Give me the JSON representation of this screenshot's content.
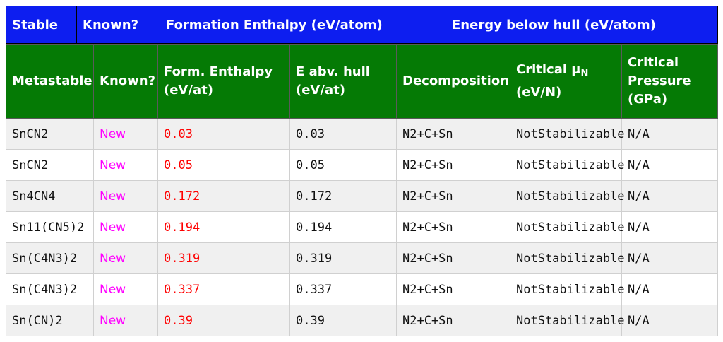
{
  "stable_header": {
    "stable": "Stable",
    "known": "Known?",
    "formation_enthalpy": "Formation Enthalpy (eV/atom)",
    "energy_below_hull": "Energy below hull (eV/atom)"
  },
  "meta_header": {
    "metastable": "Metastable",
    "known": "Known?",
    "form_enthalpy_line1": "Form. Enthalpy",
    "form_enthalpy_line2": "(eV/at)",
    "e_abv_hull_line1": "E abv. hull",
    "e_abv_hull_line2": "(eV/at)",
    "decomposition": "Decomposition",
    "critical_mu_line1": "Critical μ",
    "critical_mu_sub": "N",
    "critical_mu_line2": "(eV/N)",
    "critical_pressure_line1": "Critical",
    "critical_pressure_line2": "Pressure",
    "critical_pressure_line3": "(GPa)"
  },
  "colors": {
    "stable_header_bg": "#0d1ef0",
    "meta_header_bg": "#057a05",
    "known_text": "#ff00ff",
    "form_enthalpy_text": "#ff0000"
  },
  "rows": [
    {
      "formula": "SnCN2",
      "known": "New",
      "form_enthalpy": "0.03",
      "e_abv_hull": "0.03",
      "decomposition": "N2+C+Sn",
      "critical_mu": "NotStabilizable",
      "critical_pressure": "N/A"
    },
    {
      "formula": "SnCN2",
      "known": "New",
      "form_enthalpy": "0.05",
      "e_abv_hull": "0.05",
      "decomposition": "N2+C+Sn",
      "critical_mu": "NotStabilizable",
      "critical_pressure": "N/A"
    },
    {
      "formula": "Sn4CN4",
      "known": "New",
      "form_enthalpy": "0.172",
      "e_abv_hull": "0.172",
      "decomposition": "N2+C+Sn",
      "critical_mu": "NotStabilizable",
      "critical_pressure": "N/A"
    },
    {
      "formula": "Sn11(CN5)2",
      "known": "New",
      "form_enthalpy": "0.194",
      "e_abv_hull": "0.194",
      "decomposition": "N2+C+Sn",
      "critical_mu": "NotStabilizable",
      "critical_pressure": "N/A"
    },
    {
      "formula": "Sn(C4N3)2",
      "known": "New",
      "form_enthalpy": "0.319",
      "e_abv_hull": "0.319",
      "decomposition": "N2+C+Sn",
      "critical_mu": "NotStabilizable",
      "critical_pressure": "N/A"
    },
    {
      "formula": "Sn(C4N3)2",
      "known": "New",
      "form_enthalpy": "0.337",
      "e_abv_hull": "0.337",
      "decomposition": "N2+C+Sn",
      "critical_mu": "NotStabilizable",
      "critical_pressure": "N/A"
    },
    {
      "formula": "Sn(CN)2",
      "known": "New",
      "form_enthalpy": "0.39",
      "e_abv_hull": "0.39",
      "decomposition": "N2+C+Sn",
      "critical_mu": "NotStabilizable",
      "critical_pressure": "N/A"
    }
  ]
}
